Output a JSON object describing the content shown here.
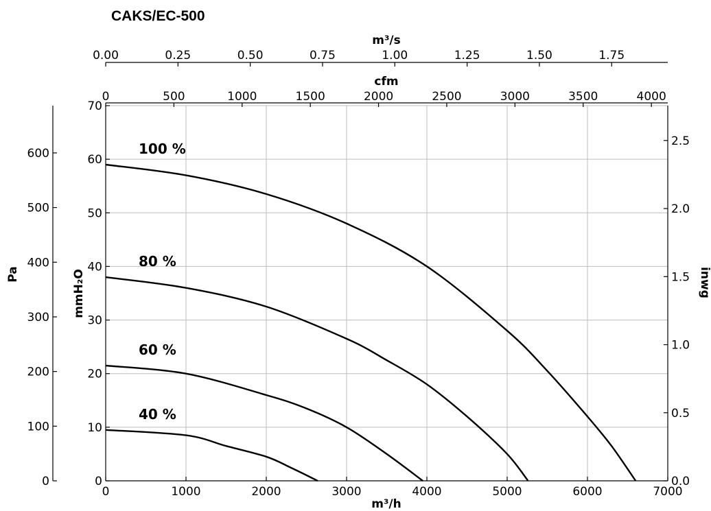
{
  "chart_data": {
    "type": "line",
    "title": "CAKS/EC-500",
    "x_bottom": {
      "label": "m³/h",
      "range": [
        0,
        7000
      ],
      "ticks": [
        "0",
        "1000",
        "2000",
        "3000",
        "4000",
        "5000",
        "6000",
        "7000"
      ]
    },
    "x_top_cfm": {
      "label": "cfm",
      "range": [
        0,
        4120
      ],
      "ticks": [
        "0",
        "500",
        "1000",
        "1500",
        "2000",
        "2500",
        "3000",
        "3500",
        "4000"
      ]
    },
    "x_top_m3s": {
      "label": "m³/s",
      "range": [
        0,
        1.944
      ],
      "ticks": [
        "0.00",
        "0.25",
        "0.50",
        "0.75",
        "1.00",
        "1.25",
        "1.50",
        "1.75"
      ]
    },
    "y_left_mmh2o": {
      "label": "mmH₂O",
      "range": [
        0,
        70
      ],
      "ticks": [
        "0",
        "10",
        "20",
        "30",
        "40",
        "50",
        "60",
        "70"
      ]
    },
    "y_left_pa": {
      "label": "Pa",
      "range": [
        0,
        686.5
      ],
      "ticks": [
        "0",
        "100",
        "200",
        "300",
        "400",
        "500",
        "600"
      ]
    },
    "y_right_inwg": {
      "label": "inwg",
      "range": [
        0,
        2.756
      ],
      "ticks": [
        "0.0",
        "0.5",
        "1.0",
        "1.5",
        "2.0",
        "2.5"
      ]
    },
    "grid": true,
    "series": [
      {
        "name": "100 %",
        "x": [
          0,
          1000,
          2000,
          3000,
          4000,
          5000,
          5500,
          6000,
          6300,
          6600
        ],
        "y": [
          59,
          57,
          53.5,
          48,
          40,
          28,
          20.5,
          12,
          6.5,
          0
        ]
      },
      {
        "name": "80 %",
        "x": [
          0,
          1000,
          2000,
          3000,
          3500,
          4000,
          4500,
          5000,
          5260
        ],
        "y": [
          38,
          36,
          32.5,
          26.5,
          22.5,
          18,
          12,
          5,
          0
        ]
      },
      {
        "name": "60 %",
        "x": [
          0,
          1000,
          2000,
          2500,
          3000,
          3500,
          3950
        ],
        "y": [
          21.5,
          20,
          16,
          13.5,
          10,
          5,
          0
        ]
      },
      {
        "name": "40 %",
        "x": [
          0,
          1000,
          1500,
          2000,
          2300,
          2640
        ],
        "y": [
          9.5,
          8.5,
          6.5,
          4.5,
          2.5,
          0
        ]
      }
    ]
  }
}
